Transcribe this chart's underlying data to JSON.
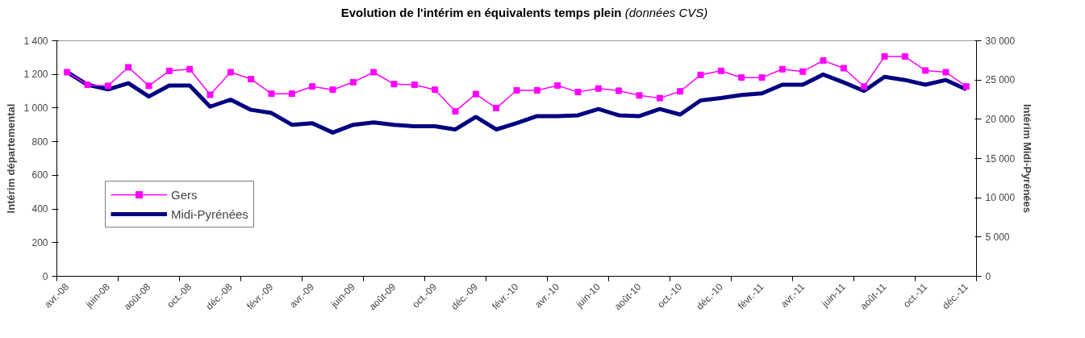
{
  "chart_data": {
    "type": "line",
    "title": "Evolution de l'intérim en équivalents temps plein",
    "subtitle": "(données CVS)",
    "ylabel": "Intérim départemental",
    "y2label": "Intérim Midi-Pyrénées",
    "categories": [
      "avr.-08",
      null,
      "juin-08",
      null,
      "août-08",
      null,
      "oct.-08",
      null,
      "déc.-08",
      null,
      "févr.-09",
      null,
      "avr.-09",
      null,
      "juin-09",
      null,
      "août-09",
      null,
      "oct.-09",
      null,
      "déc.-09",
      null,
      "févr.-10",
      null,
      "avr.-10",
      null,
      "juin-10",
      null,
      "août-10",
      null,
      "oct.-10",
      null,
      "déc.-10",
      null,
      "févr.-11",
      null,
      "avr.-11",
      null,
      "juin-11",
      null,
      "août-11",
      null,
      "oct.-11",
      null,
      "déc.-11"
    ],
    "series": [
      {
        "name": "Gers",
        "color": "#ff00ff",
        "marker": "square",
        "values": [
          1213,
          1138,
          1132,
          1242,
          1132,
          1221,
          1231,
          1079,
          1213,
          1172,
          1085,
          1085,
          1128,
          1109,
          1154,
          1213,
          1142,
          1138,
          1109,
          981,
          1083,
          1000,
          1105,
          1105,
          1134,
          1095,
          1116,
          1103,
          1075,
          1059,
          1099,
          1197,
          1221,
          1181,
          1181,
          1231,
          1217,
          1282,
          1237,
          1128,
          1306,
          1306,
          1223,
          1213,
          1128
        ]
      },
      {
        "name": "Midi-Pyrénées",
        "color": "#000080",
        "marker": "none",
        "axis": "y2",
        "values": [
          26000,
          24400,
          23800,
          24600,
          22900,
          24300,
          24300,
          21600,
          22500,
          21200,
          20800,
          19300,
          19500,
          18300,
          19300,
          19600,
          19300,
          19100,
          19100,
          18700,
          20300,
          18700,
          19500,
          20400,
          20400,
          20500,
          21300,
          20500,
          20400,
          21300,
          20600,
          22400,
          22700,
          23100,
          23300,
          24400,
          24400,
          25700,
          24700,
          23600,
          25400,
          25000,
          24400,
          25000,
          23800
        ]
      }
    ],
    "ylim": [
      0,
      1400
    ],
    "yticks": [
      0,
      200,
      400,
      600,
      800,
      {
        "value": 1000,
        "label": "1 000"
      },
      {
        "value": 1200,
        "label": "1 200"
      },
      {
        "value": 1400,
        "label": "1 400"
      }
    ],
    "y2lim": [
      0,
      30000
    ],
    "y2ticks": [
      0,
      {
        "value": 5000,
        "label": "5 000"
      },
      {
        "value": 10000,
        "label": "10 000"
      },
      {
        "value": 15000,
        "label": "15 000"
      },
      {
        "value": 20000,
        "label": "20 000"
      },
      {
        "value": 25000,
        "label": "25 000"
      },
      {
        "value": 30000,
        "label": "30 000"
      }
    ],
    "grid": false,
    "legend": "bottom left",
    "line_style": "solid"
  }
}
